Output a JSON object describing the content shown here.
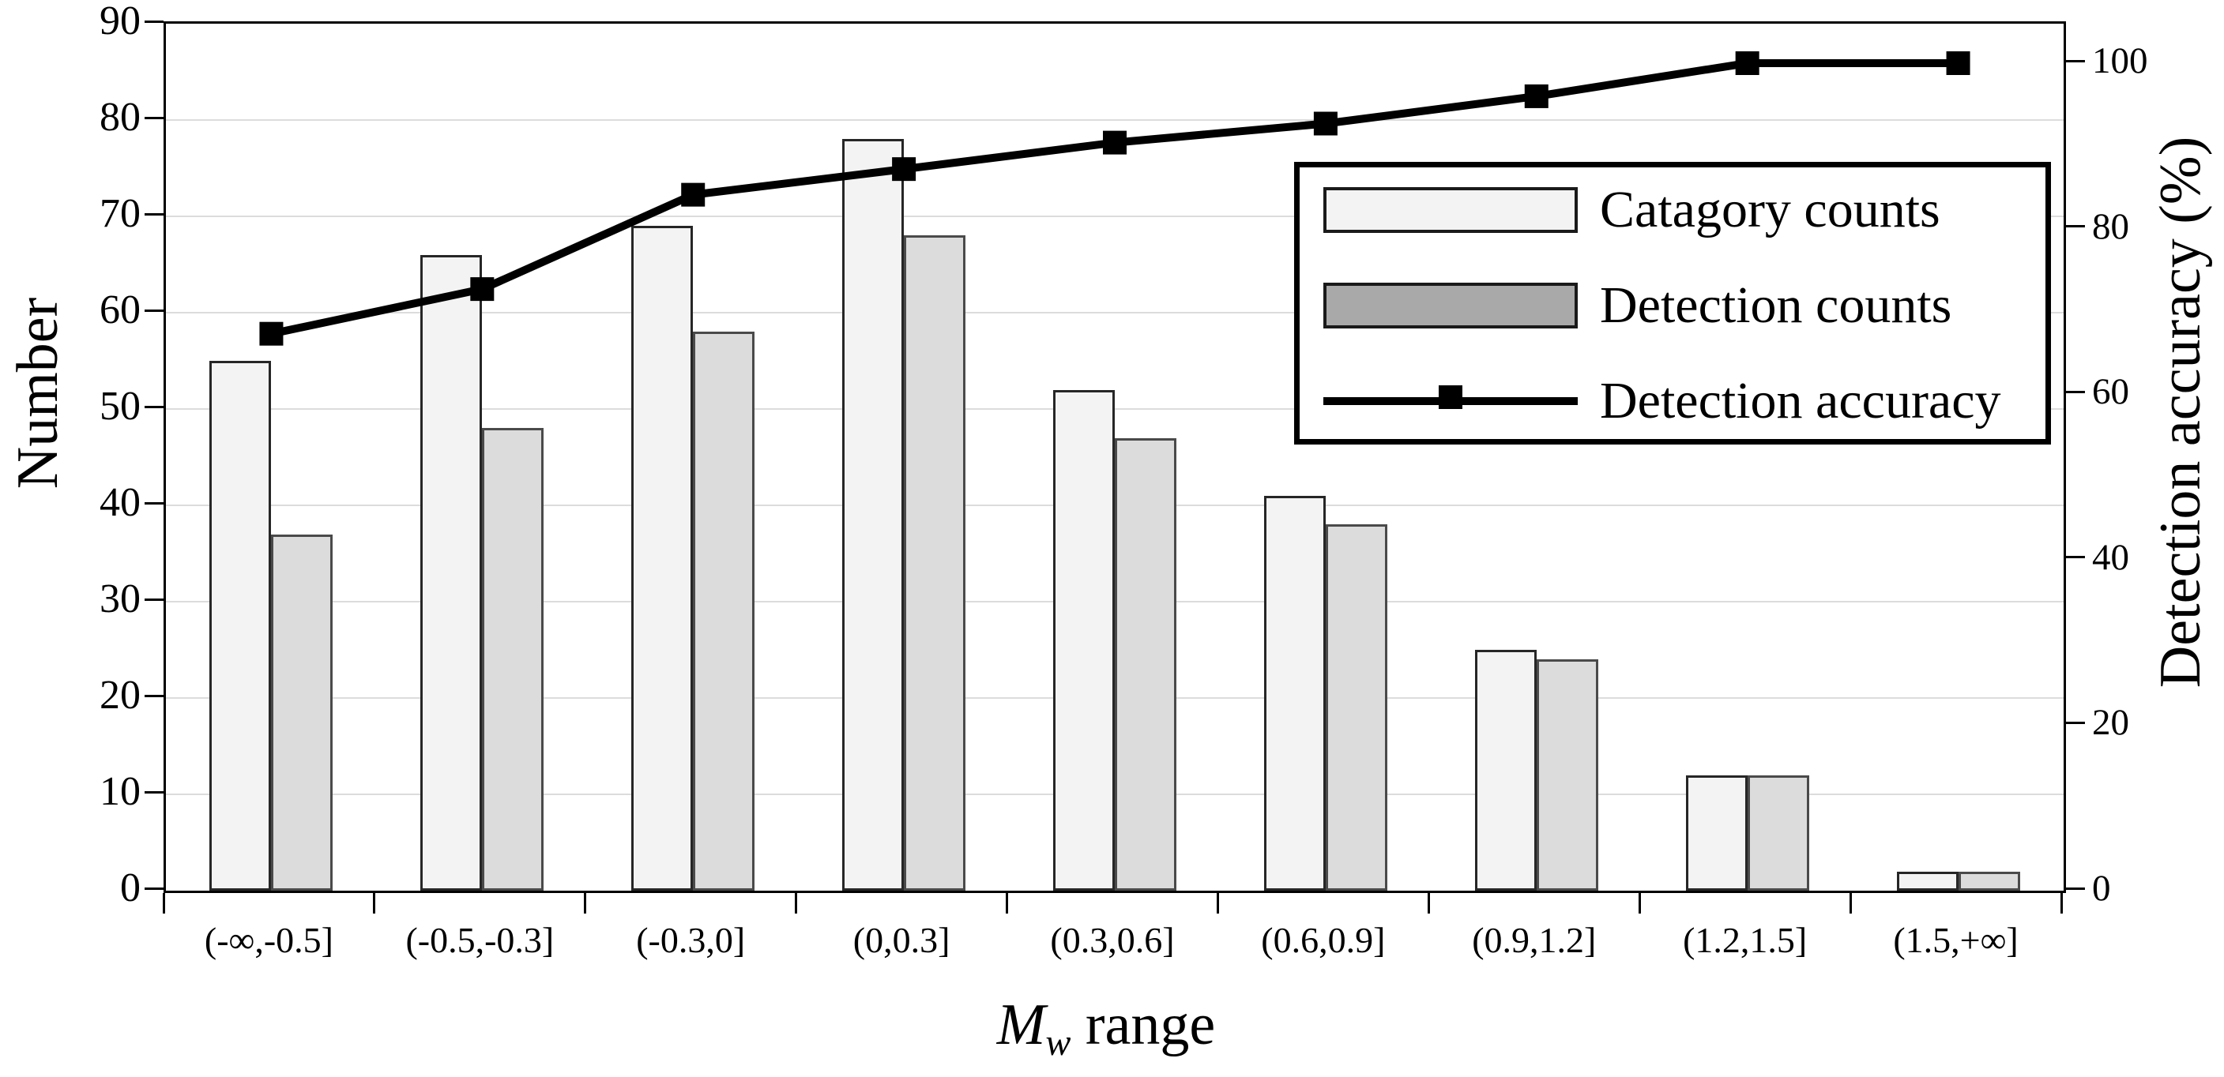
{
  "figure": {
    "left_axis_title": "Number",
    "right_axis_title": "Detection accuracy (%)",
    "x_axis_title": {
      "symbol": "M",
      "subscript": "w",
      "rest": " range"
    }
  },
  "chart_data": {
    "type": "bar+line",
    "categories": [
      "(-∞,-0.5]",
      "(-0.5,-0.3]",
      "(-0.3,0]",
      "(0,0.3]",
      "(0.3,0.6]",
      "(0.6,0.9]",
      "(0.9,1.2]",
      "(1.2,1.5]",
      "(1.5,+∞]"
    ],
    "series": [
      {
        "name": "Catagory counts",
        "type": "bar",
        "axis": "left",
        "values": [
          55,
          66,
          69,
          78,
          52,
          41,
          25,
          12,
          2
        ],
        "fill": "#f3f3f3",
        "border": "#262626"
      },
      {
        "name": "Detection counts",
        "type": "bar",
        "axis": "left",
        "values": [
          37,
          48,
          58,
          68,
          47,
          38,
          24,
          12,
          2
        ],
        "fill": "#dcdcdc",
        "border": "#4a4a4a"
      },
      {
        "name": "Detection accuracy",
        "type": "line",
        "axis": "right",
        "values": [
          67.3,
          72.7,
          84.1,
          87.2,
          90.4,
          92.7,
          96.0,
          100.0,
          100.0
        ],
        "color": "#000000",
        "marker": "square"
      }
    ],
    "left_axis": {
      "label": "Number",
      "min": 0,
      "max": 90,
      "ticks": [
        0,
        10,
        20,
        30,
        40,
        50,
        60,
        70,
        80,
        90
      ]
    },
    "right_axis": {
      "label": "Detection accuracy (%)",
      "min": 0,
      "max": 100,
      "ticks": [
        0,
        20,
        40,
        60,
        80,
        100
      ]
    },
    "xlabel": "Mw range",
    "grid": "horizontal-left-ticks",
    "legend_position": "upper-right-inside"
  }
}
